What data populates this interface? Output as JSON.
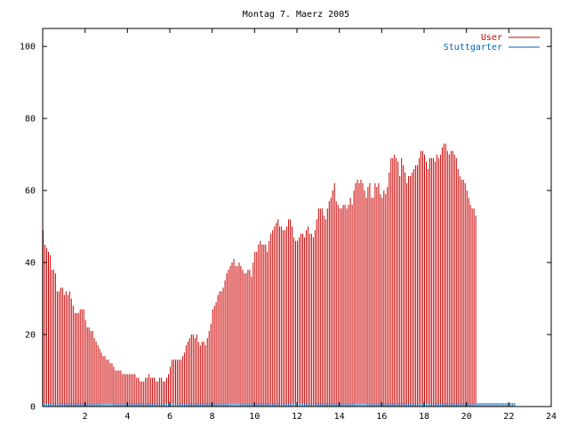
{
  "chart_data": {
    "type": "bar",
    "title": "Montag 7. Maerz 2005",
    "xlabel": "",
    "ylabel": "",
    "xlim": [
      0,
      24
    ],
    "ylim": [
      0,
      105
    ],
    "x_ticks": [
      "2",
      "4",
      "6",
      "8",
      "10",
      "12",
      "14",
      "16",
      "18",
      "20",
      "22",
      "24"
    ],
    "y_ticks": [
      "0",
      "20",
      "40",
      "60",
      "80",
      "100"
    ],
    "grid": false,
    "legend_position": "top-right",
    "series": [
      {
        "name": "User",
        "color": "#cc0000",
        "bin_minutes": 5,
        "values": [
          49,
          45,
          44,
          43,
          42,
          38,
          38,
          37,
          32,
          32,
          33,
          33,
          31,
          32,
          31,
          32,
          30,
          28,
          26,
          26,
          26,
          27,
          27,
          27,
          24,
          22,
          22,
          21,
          21,
          19,
          18,
          17,
          16,
          15,
          14,
          14,
          13,
          13,
          12,
          12,
          11,
          10,
          10,
          10,
          10,
          9,
          9,
          9,
          9,
          9,
          9,
          9,
          9,
          8,
          8,
          7,
          7,
          7,
          8,
          8,
          9,
          8,
          8,
          8,
          7,
          7,
          8,
          8,
          7,
          7,
          8,
          9,
          11,
          13,
          13,
          13,
          13,
          13,
          13,
          14,
          15,
          17,
          18,
          19,
          20,
          20,
          19,
          20,
          18,
          17,
          18,
          18,
          17,
          19,
          21,
          23,
          27,
          28,
          29,
          31,
          32,
          32,
          33,
          35,
          37,
          38,
          39,
          40,
          41,
          39,
          39,
          40,
          39,
          38,
          37,
          37,
          38,
          38,
          36,
          40,
          43,
          43,
          45,
          46,
          45,
          45,
          45,
          43,
          46,
          48,
          49,
          50,
          51,
          52,
          50,
          50,
          49,
          49,
          50,
          52,
          52,
          50,
          47,
          46,
          46,
          47,
          48,
          48,
          47,
          49,
          50,
          48,
          48,
          47,
          49,
          52,
          55,
          55,
          55,
          53,
          52,
          55,
          57,
          58,
          60,
          62,
          57,
          56,
          55,
          55,
          56,
          56,
          55,
          56,
          58,
          56,
          60,
          62,
          63,
          62,
          63,
          62,
          60,
          58,
          61,
          62,
          58,
          58,
          62,
          61,
          62,
          59,
          58,
          60,
          59,
          61,
          65,
          69,
          69,
          70,
          69,
          68,
          64,
          69,
          67,
          65,
          62,
          64,
          64,
          65,
          66,
          67,
          67,
          69,
          71,
          71,
          70,
          68,
          66,
          69,
          69,
          69,
          68,
          70,
          69,
          70,
          72,
          73,
          73,
          71,
          70,
          71,
          71,
          70,
          69,
          66,
          64,
          63,
          63,
          62,
          60,
          58,
          56,
          55,
          55,
          53
        ]
      },
      {
        "name": "Stuttgarter",
        "color": "#0066bb",
        "bin_minutes": 5,
        "values": [
          1,
          1,
          1,
          1,
          1,
          1,
          1,
          1,
          1,
          1,
          1,
          1,
          1,
          1,
          1,
          1,
          1,
          1,
          1,
          1,
          1,
          1,
          1,
          1,
          1,
          1,
          1,
          1,
          1,
          1,
          1,
          1,
          1,
          1,
          1,
          1,
          1,
          1,
          1,
          1,
          1,
          1,
          1,
          1,
          1,
          1,
          1,
          1,
          1,
          1,
          1,
          1,
          1,
          1,
          1,
          1,
          1,
          1,
          1,
          1,
          1,
          1,
          1,
          1,
          1,
          1,
          1,
          1,
          1,
          1,
          1,
          1,
          1,
          1,
          1,
          1,
          1,
          1,
          1,
          1,
          1,
          1,
          1,
          1,
          1,
          1,
          1,
          1,
          1,
          1,
          1,
          1,
          1,
          1,
          1,
          1,
          1,
          1,
          1,
          1,
          1,
          1,
          1,
          1,
          1,
          1,
          1,
          1,
          1,
          1,
          1,
          1,
          1,
          1,
          1,
          1,
          1,
          1,
          1,
          1,
          1,
          1,
          1,
          1,
          1,
          1,
          1,
          1,
          1,
          1,
          1,
          1,
          1,
          1,
          1,
          1,
          1,
          1,
          1,
          1,
          1,
          1,
          1,
          1,
          1,
          1,
          1,
          1,
          1,
          1,
          1,
          1,
          1,
          1,
          1,
          1,
          1,
          1,
          1,
          1,
          1,
          1,
          1,
          1,
          1,
          1,
          1,
          1,
          1,
          1,
          1,
          1,
          1,
          1,
          1,
          1,
          1,
          1,
          1,
          1,
          1,
          1,
          1,
          1,
          1,
          1,
          1,
          1,
          1,
          1,
          1,
          1,
          1,
          1,
          1,
          1,
          1,
          1,
          1,
          1,
          1,
          1,
          1,
          1,
          1,
          1,
          1,
          1,
          1,
          1,
          1,
          1,
          1,
          1,
          1,
          1,
          1,
          1,
          1,
          1,
          1,
          1,
          1,
          1,
          1,
          1,
          1,
          1,
          1,
          1,
          1,
          1,
          1,
          1,
          1,
          1,
          1,
          1,
          1,
          1,
          1,
          1,
          1,
          1,
          1,
          1,
          1,
          1,
          1,
          1,
          1,
          1,
          1,
          1,
          1,
          1,
          1,
          1,
          1,
          1,
          1,
          1,
          1,
          1,
          1,
          1,
          1,
          1
        ]
      }
    ]
  }
}
